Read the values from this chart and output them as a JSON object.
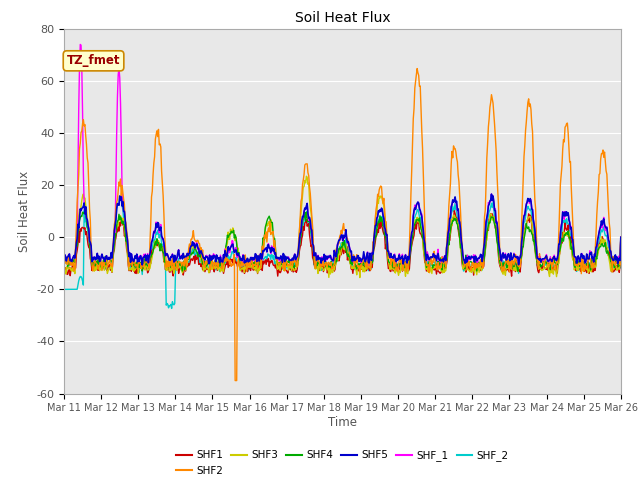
{
  "title": "Soil Heat Flux",
  "xlabel": "Time",
  "ylabel": "Soil Heat Flux",
  "ylim": [
    -60,
    80
  ],
  "series": {
    "SHF1": {
      "color": "#cc0000",
      "lw": 1.0
    },
    "SHF2": {
      "color": "#ff8800",
      "lw": 1.0
    },
    "SHF3": {
      "color": "#cccc00",
      "lw": 1.0
    },
    "SHF4": {
      "color": "#00aa00",
      "lw": 1.0
    },
    "SHF5": {
      "color": "#0000cc",
      "lw": 1.2
    },
    "SHF_1": {
      "color": "#ff00ff",
      "lw": 1.0
    },
    "SHF_2": {
      "color": "#00cccc",
      "lw": 1.0
    }
  },
  "xtick_labels": [
    "Mar 11",
    "Mar 12",
    "Mar 13",
    "Mar 14",
    "Mar 15",
    "Mar 16",
    "Mar 17",
    "Mar 18",
    "Mar 19",
    "Mar 20",
    "Mar 21",
    "Mar 22",
    "Mar 23",
    "Mar 24",
    "Mar 25",
    "Mar 26"
  ],
  "ytick_vals": [
    -60,
    -40,
    -20,
    0,
    20,
    40,
    60,
    80
  ],
  "annotation_text": "TZ_fmet",
  "legend_order": [
    "SHF1",
    "SHF2",
    "SHF3",
    "SHF4",
    "SHF5",
    "SHF_1",
    "SHF_2"
  ],
  "facecolor": "#e8e8e8",
  "grid_color": "white",
  "day_peaks_SHF2": [
    55,
    30,
    50,
    10,
    0,
    14,
    37,
    13,
    29,
    75,
    45,
    63,
    62,
    53,
    43
  ],
  "day_peaks_SHF3": [
    28,
    20,
    10,
    8,
    15,
    18,
    35,
    8,
    28,
    20,
    20,
    20,
    20,
    14,
    10
  ],
  "day_peaks_SHF4": [
    20,
    18,
    8,
    5,
    12,
    17,
    19,
    7,
    17,
    17,
    17,
    17,
    14,
    12,
    7
  ],
  "day_peaks_SHF5": [
    20,
    23,
    13,
    5,
    4,
    4,
    19,
    9,
    19,
    21,
    23,
    23,
    23,
    18,
    14
  ],
  "day_peaks_SHF1": [
    16,
    18,
    10,
    4,
    3,
    3,
    17,
    7,
    17,
    17,
    20,
    20,
    20,
    16,
    11
  ],
  "SHF_1_day1_peak": 75,
  "SHF_1_day2_peak": 65,
  "SHF2_spike_day": 4.62,
  "SHF2_spike_val": -55
}
